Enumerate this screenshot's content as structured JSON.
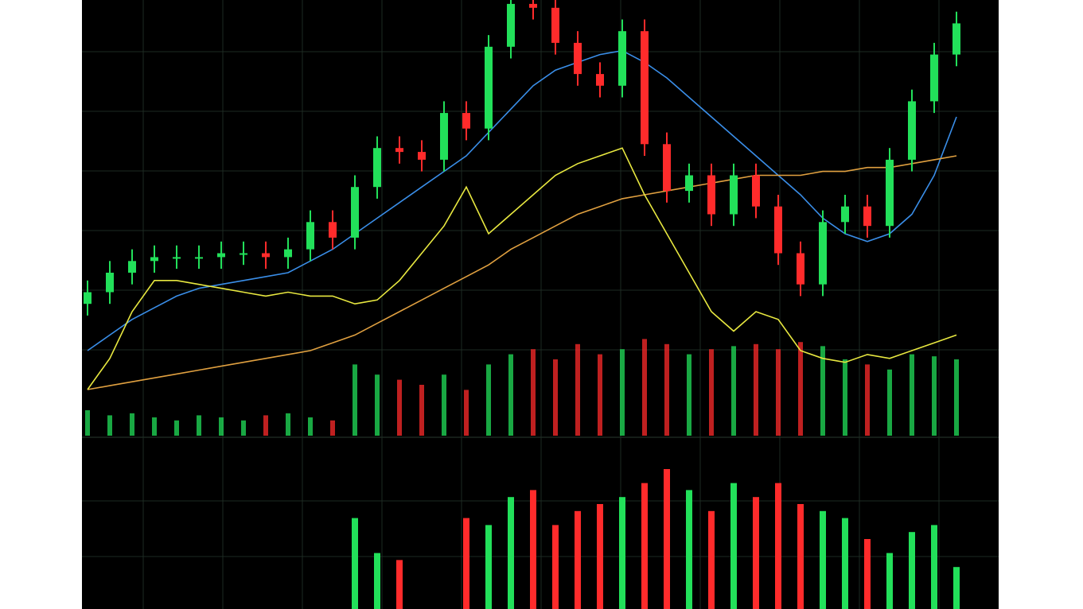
{
  "chart_data": {
    "type": "candlestick",
    "categories": [
      null,
      null,
      null,
      null,
      null,
      null,
      null,
      null,
      null,
      null,
      null,
      null,
      null,
      null,
      null,
      null,
      null,
      null,
      null,
      null,
      null,
      null,
      null,
      null,
      null,
      null,
      null,
      null,
      null,
      null,
      null,
      null,
      null,
      null,
      null,
      null,
      null,
      null,
      null,
      null
    ],
    "open": [
      22,
      25,
      30,
      33,
      34,
      34,
      34,
      35,
      35,
      34,
      36,
      43,
      39,
      52,
      62,
      61,
      59,
      71,
      67,
      88,
      99,
      98,
      89,
      81,
      78,
      92,
      63,
      51,
      55,
      45,
      55,
      47,
      35,
      27,
      43,
      47,
      42,
      59,
      74,
      86
    ],
    "close": [
      25,
      30,
      33,
      34,
      34,
      34,
      35,
      35,
      34,
      36,
      43,
      39,
      52,
      62,
      61,
      59,
      71,
      67,
      88,
      99,
      98,
      89,
      81,
      78,
      92,
      63,
      51,
      55,
      45,
      55,
      47,
      35,
      27,
      43,
      47,
      42,
      59,
      74,
      86,
      94
    ],
    "high": [
      28,
      33,
      36,
      37,
      37,
      37,
      38,
      38,
      38,
      39,
      46,
      46,
      55,
      65,
      65,
      64,
      74,
      74,
      91,
      100,
      100,
      100,
      92,
      84,
      95,
      95,
      66,
      58,
      58,
      58,
      58,
      50,
      38,
      46,
      50,
      50,
      62,
      77,
      89,
      97
    ],
    "low": [
      19,
      22,
      27,
      30,
      31,
      31,
      31,
      32,
      31,
      31,
      33,
      36,
      36,
      49,
      58,
      56,
      56,
      64,
      64,
      85,
      95,
      86,
      78,
      75,
      75,
      60,
      48,
      48,
      42,
      42,
      44,
      32,
      24,
      24,
      40,
      39,
      39,
      56,
      71,
      83
    ],
    "ylim": [
      0,
      100
    ],
    "up_color": "#22e05a",
    "down_color": "#ff2b2b",
    "lines": [
      {
        "color": "#3a8ee8",
        "values": [
          10,
          14,
          18,
          21,
          24,
          26,
          27,
          28,
          29,
          30,
          33,
          36,
          40,
          44,
          48,
          52,
          56,
          60,
          66,
          72,
          78,
          82,
          84,
          86,
          87,
          84,
          80,
          75,
          70,
          65,
          60,
          55,
          50,
          44,
          40,
          38,
          40,
          45,
          55,
          70
        ]
      },
      {
        "color": "#e0a040",
        "values": [
          0,
          1,
          2,
          3,
          4,
          5,
          6,
          7,
          8,
          9,
          10,
          12,
          14,
          17,
          20,
          23,
          26,
          29,
          32,
          36,
          39,
          42,
          45,
          47,
          49,
          50,
          51,
          52,
          53,
          54,
          55,
          55,
          55,
          56,
          56,
          57,
          57,
          58,
          59,
          60
        ]
      },
      {
        "color": "#e8e840",
        "values": [
          0,
          8,
          20,
          28,
          28,
          27,
          26,
          25,
          24,
          25,
          24,
          24,
          22,
          23,
          28,
          35,
          42,
          52,
          40,
          45,
          50,
          55,
          58,
          60,
          62,
          50,
          40,
          30,
          20,
          15,
          20,
          18,
          10,
          8,
          7,
          9,
          8,
          10,
          12,
          14
        ]
      }
    ],
    "volume": {
      "ylim": [
        0,
        100
      ],
      "values": [
        25,
        20,
        22,
        18,
        15,
        20,
        18,
        15,
        20,
        22,
        18,
        15,
        70,
        60,
        55,
        50,
        60,
        45,
        70,
        80,
        85,
        75,
        90,
        80,
        85,
        95,
        90,
        80,
        85,
        88,
        90,
        85,
        92,
        88,
        75,
        70,
        65,
        80,
        78,
        75
      ]
    },
    "histogram": {
      "ylim": [
        0,
        100
      ],
      "values": [
        0,
        0,
        0,
        0,
        0,
        0,
        0,
        0,
        0,
        0,
        0,
        0,
        65,
        40,
        35,
        0,
        0,
        65,
        60,
        80,
        85,
        60,
        70,
        75,
        80,
        90,
        100,
        85,
        70,
        90,
        80,
        90,
        75,
        70,
        65,
        50,
        40,
        55,
        60,
        30
      ]
    }
  }
}
